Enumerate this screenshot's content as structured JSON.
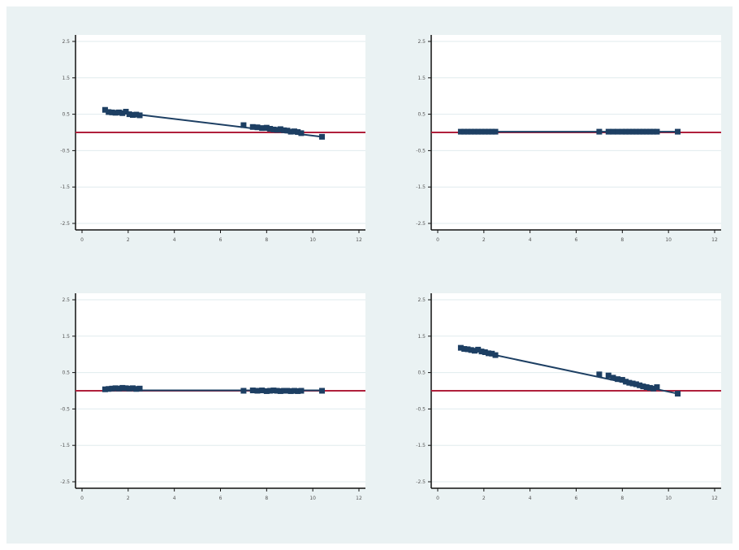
{
  "colors": {
    "background": "#eaf2f3",
    "plot_area": "#ffffff",
    "grid": "#e0ebee",
    "fit_line": "#1d3f63",
    "marker": "#1d3f63",
    "reference_line": "#b0203c",
    "axis": "#111111"
  },
  "chart_data": [
    {
      "type": "scatter",
      "grid": true,
      "xlim": [
        0,
        12
      ],
      "ylim": [
        -2.5,
        2.5
      ],
      "xticks": [
        0,
        2,
        4,
        6,
        8,
        10,
        12
      ],
      "yticks": [
        -2.5,
        -1.5,
        -0.5,
        0.5,
        1.5,
        2.5
      ],
      "reference_y": 0,
      "x": [
        1,
        1.15,
        1.3,
        1.45,
        1.6,
        1.75,
        1.9,
        2.05,
        2.2,
        2.35,
        2.5,
        7,
        7.4,
        7.6,
        7.8,
        8,
        8.15,
        8.3,
        8.45,
        8.6,
        8.75,
        8.9,
        9.05,
        9.2,
        9.35,
        9.5,
        10.4
      ],
      "y": [
        0.62,
        0.56,
        0.55,
        0.54,
        0.55,
        0.53,
        0.57,
        0.5,
        0.48,
        0.49,
        0.47,
        0.2,
        0.15,
        0.14,
        0.12,
        0.13,
        0.1,
        0.08,
        0.07,
        0.09,
        0.06,
        0.05,
        0.02,
        0.03,
        0.01,
        -0.02,
        -0.12
      ],
      "fit": [
        [
          1,
          0.6
        ],
        [
          10.4,
          -0.12
        ]
      ],
      "xlabel": "",
      "ylabel": ""
    },
    {
      "type": "scatter",
      "grid": true,
      "xlim": [
        0,
        12
      ],
      "ylim": [
        -2.5,
        2.5
      ],
      "xticks": [
        0,
        2,
        4,
        6,
        8,
        10,
        12
      ],
      "yticks": [
        -2.5,
        -1.5,
        -0.5,
        0.5,
        1.5,
        2.5
      ],
      "reference_y": 0,
      "x": [
        1,
        1.15,
        1.3,
        1.45,
        1.6,
        1.75,
        1.9,
        2.05,
        2.2,
        2.35,
        2.5,
        7,
        7.4,
        7.6,
        7.8,
        8,
        8.15,
        8.3,
        8.45,
        8.6,
        8.75,
        8.9,
        9.05,
        9.2,
        9.35,
        9.5,
        10.4
      ],
      "y": [
        0.02,
        0.02,
        0.02,
        0.02,
        0.02,
        0.02,
        0.02,
        0.02,
        0.02,
        0.02,
        0.02,
        0.02,
        0.02,
        0.02,
        0.02,
        0.02,
        0.02,
        0.02,
        0.02,
        0.02,
        0.02,
        0.02,
        0.02,
        0.02,
        0.02,
        0.02,
        0.02
      ],
      "fit": [
        [
          1,
          0.02
        ],
        [
          10.4,
          0.02
        ]
      ],
      "xlabel": "",
      "ylabel": ""
    },
    {
      "type": "scatter",
      "grid": true,
      "xlim": [
        0,
        12
      ],
      "ylim": [
        -2.5,
        2.5
      ],
      "xticks": [
        0,
        2,
        4,
        6,
        8,
        10,
        12
      ],
      "yticks": [
        -2.5,
        -1.5,
        -0.5,
        0.5,
        1.5,
        2.5
      ],
      "reference_y": 0,
      "x": [
        1,
        1.15,
        1.3,
        1.45,
        1.6,
        1.75,
        1.9,
        2.05,
        2.2,
        2.35,
        2.5,
        7,
        7.4,
        7.6,
        7.8,
        8,
        8.15,
        8.3,
        8.45,
        8.6,
        8.75,
        8.9,
        9.05,
        9.2,
        9.35,
        9.5,
        10.4
      ],
      "y": [
        0.04,
        0.05,
        0.06,
        0.07,
        0.06,
        0.08,
        0.07,
        0.06,
        0.07,
        0.05,
        0.06,
        0,
        0.01,
        0,
        0.01,
        -0.01,
        0,
        0.01,
        0,
        -0.01,
        0,
        0,
        -0.01,
        0,
        -0.01,
        0,
        0
      ],
      "fit": [
        [
          1,
          0.01
        ],
        [
          10.4,
          0.01
        ]
      ],
      "xlabel": "",
      "ylabel": ""
    },
    {
      "type": "scatter",
      "grid": true,
      "xlim": [
        0,
        12
      ],
      "ylim": [
        -2.5,
        2.5
      ],
      "xticks": [
        0,
        2,
        4,
        6,
        8,
        10,
        12
      ],
      "yticks": [
        -2.5,
        -1.5,
        -0.5,
        0.5,
        1.5,
        2.5
      ],
      "reference_y": 0,
      "x": [
        1,
        1.15,
        1.3,
        1.45,
        1.6,
        1.75,
        1.9,
        2.05,
        2.2,
        2.35,
        2.5,
        7,
        7.4,
        7.6,
        7.8,
        8,
        8.15,
        8.3,
        8.45,
        8.6,
        8.75,
        8.9,
        9.05,
        9.2,
        9.35,
        9.5,
        10.4
      ],
      "y": [
        1.18,
        1.15,
        1.14,
        1.12,
        1.1,
        1.13,
        1.08,
        1.06,
        1.03,
        1.02,
        0.98,
        0.45,
        0.42,
        0.36,
        0.32,
        0.3,
        0.25,
        0.22,
        0.2,
        0.18,
        0.15,
        0.12,
        0.1,
        0.08,
        0.06,
        0.1,
        -0.08
      ],
      "fit": [
        [
          1,
          1.18
        ],
        [
          10.4,
          -0.08
        ]
      ],
      "xlabel": "",
      "ylabel": ""
    }
  ]
}
